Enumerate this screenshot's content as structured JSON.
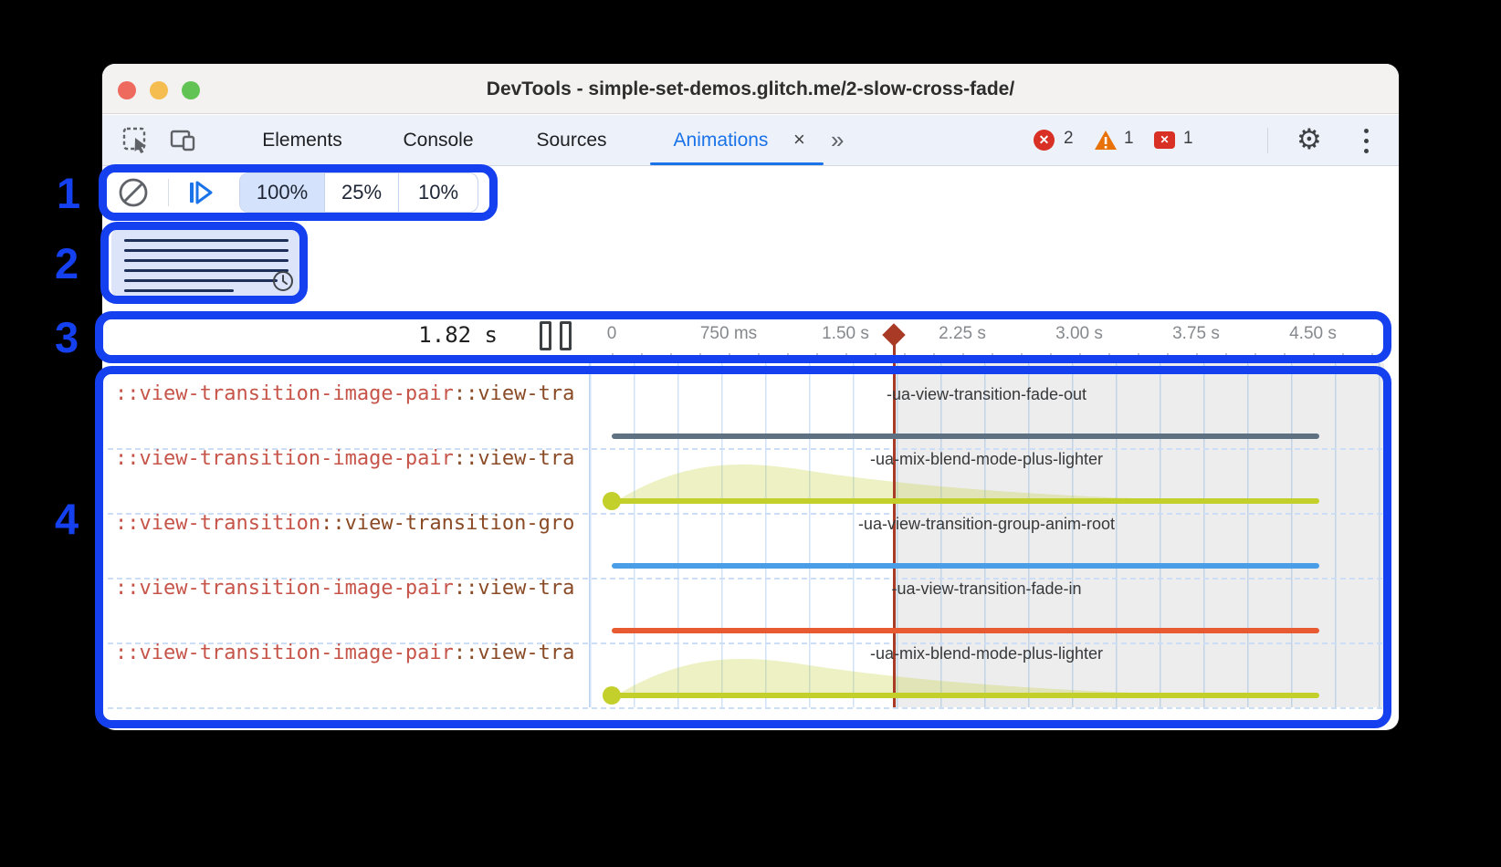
{
  "window": {
    "title": "DevTools - simple-set-demos.glitch.me/2-slow-cross-fade/"
  },
  "toolbar": {
    "tabs": [
      {
        "label": "Elements"
      },
      {
        "label": "Console"
      },
      {
        "label": "Sources"
      },
      {
        "label": "Animations",
        "active": true
      }
    ],
    "close_tab_glyph": "×",
    "more_tabs_glyph": "»",
    "badges": {
      "errors": "2",
      "warnings": "1",
      "issues": "1"
    },
    "icons": [
      "inspect-icon",
      "device-toolbar-icon",
      "gear-icon",
      "kebab-menu-icon"
    ]
  },
  "controls": {
    "icons": [
      "clear-all-icon",
      "replay-icon"
    ],
    "rates": [
      {
        "label": "100%",
        "selected": true
      },
      {
        "label": "25%",
        "selected": false
      },
      {
        "label": "10%",
        "selected": false
      }
    ]
  },
  "preview": {
    "line_widths": [
      180,
      180,
      180,
      180,
      168,
      120
    ],
    "icon": "clock-icon"
  },
  "timeline": {
    "current_time": "1.82 s",
    "playhead_time_s": 1.82,
    "ticks": [
      "0",
      "750 ms",
      "1.50 s",
      "2.25 s",
      "3.00 s",
      "3.75 s",
      "4.50 s"
    ],
    "axis_range_s": [
      0,
      4.5
    ]
  },
  "tracks": {
    "rows": [
      {
        "selector_primary": "::view-transition-image-pair",
        "selector_secondary": "::view-tra",
        "animation": "-ua-view-transition-fade-out",
        "color": "#5e7183",
        "easing_hump": false,
        "start_dot": false
      },
      {
        "selector_primary": "::view-transition-image-pair",
        "selector_secondary": "::view-tra",
        "animation": "-ua-mix-blend-mode-plus-lighter",
        "color": "#c3cf2b",
        "easing_hump": true,
        "start_dot": true
      },
      {
        "selector_primary": "::view-transition",
        "selector_secondary": "::view-transition-gro",
        "animation": "-ua-view-transition-group-anim-root",
        "color": "#4a9ee8",
        "easing_hump": false,
        "start_dot": false
      },
      {
        "selector_primary": "::view-transition-image-pair",
        "selector_secondary": "::view-tra",
        "animation": "-ua-view-transition-fade-in",
        "color": "#e85b32",
        "easing_hump": false,
        "start_dot": false
      },
      {
        "selector_primary": "::view-transition-image-pair",
        "selector_secondary": "::view-tra",
        "animation": "-ua-mix-blend-mode-plus-lighter",
        "color": "#c3cf2b",
        "easing_hump": true,
        "start_dot": true
      }
    ]
  },
  "annotations": {
    "labels": [
      "1",
      "2",
      "3",
      "4"
    ],
    "accent_color": "#1540f0"
  },
  "status_colors": {
    "error": "#d93025",
    "warning": "#e8710a",
    "accent_blue": "#1a73e8"
  }
}
